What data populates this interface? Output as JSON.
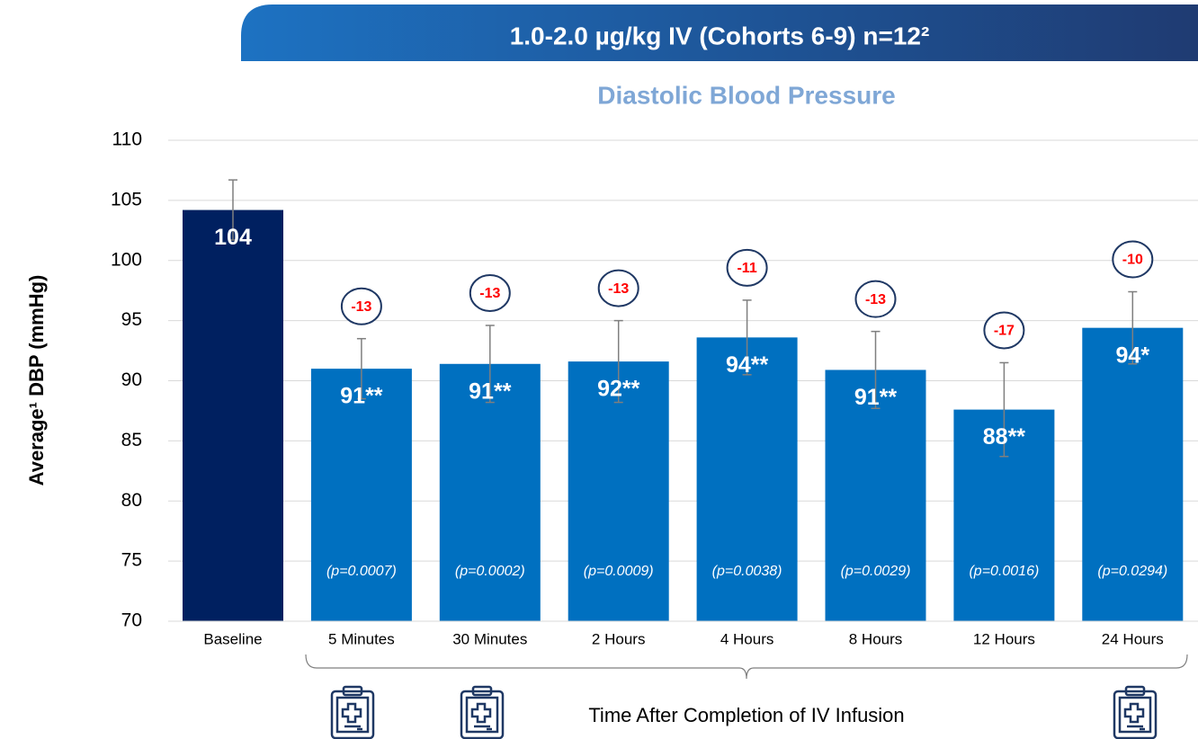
{
  "banner": "1.0-2.0 µg/kg IV (Cohorts 6-9) n=12²",
  "chart_data": {
    "type": "bar",
    "title": "Diastolic Blood Pressure",
    "y_label": "Average¹ DBP (mmHg)",
    "x_label": "Time After Completion of IV Infusion",
    "categories": [
      "Baseline",
      "5 Minutes",
      "30 Minutes",
      "2 Hours",
      "4 Hours",
      "8 Hours",
      "12 Hours",
      "24 Hours"
    ],
    "values": [
      104.2,
      91.0,
      91.4,
      91.6,
      93.6,
      90.9,
      87.6,
      94.4
    ],
    "value_labels": [
      "104",
      "91**",
      "91**",
      "92**",
      "94**",
      "91**",
      "88**",
      "94*"
    ],
    "errors": [
      2.5,
      2.5,
      3.2,
      3.4,
      3.1,
      3.2,
      3.9,
      3.0
    ],
    "changes": [
      null,
      -13,
      -13,
      -13,
      -11,
      -13,
      -17,
      -10
    ],
    "p_values": [
      null,
      "(p=0.0007)",
      "(p=0.0002)",
      "(p=0.0009)",
      "(p=0.0038)",
      "(p=0.0029)",
      "(p=0.0016)",
      "(p=0.0294)"
    ],
    "colors": [
      "#002060",
      "#0070c0",
      "#0070c0",
      "#0070c0",
      "#0070c0",
      "#0070c0",
      "#0070c0",
      "#0070c0"
    ],
    "error_color": "#7f7f7f",
    "change_color": "#ff0000",
    "ylim": [
      70,
      110
    ],
    "yticks": [
      70,
      75,
      80,
      85,
      90,
      95,
      100,
      105,
      110
    ],
    "grid": true
  }
}
